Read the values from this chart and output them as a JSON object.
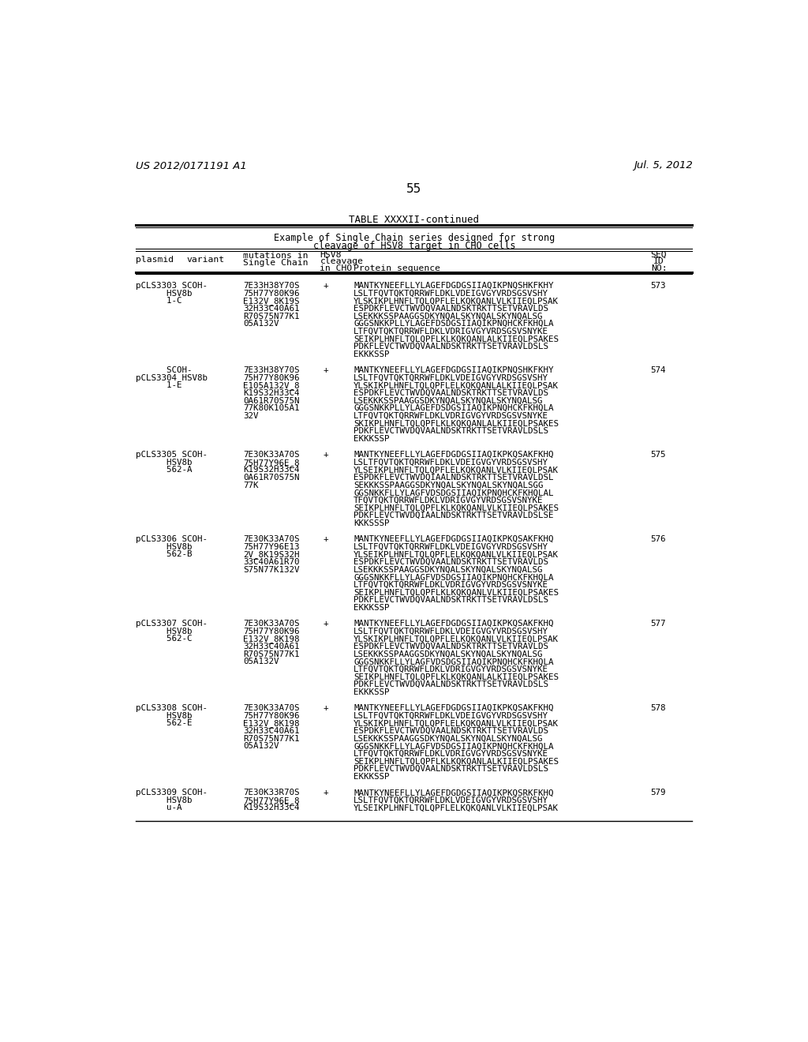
{
  "bg_color": "#ffffff",
  "header_left": "US 2012/0171191 A1",
  "header_right": "Jul. 5, 2012",
  "page_number": "55",
  "table_title": "TABLE XXXXII-continued",
  "table_subtitle1": "Example of Single Chain series designed for strong",
  "table_subtitle2": "cleavage of HSV8 target in CHO cells",
  "entries": [
    {
      "plasmid_line1": "pCLS3303 SCOH-",
      "plasmid_line2": "      HSV8b",
      "plasmid_line3": "      1-C",
      "mutations": [
        "7E33H38Y70S",
        "75H77Y80K96",
        "E132V_8K19S",
        "32H33C40A61",
        "R70S75N77K1",
        "05A132V"
      ],
      "cleavage": "+",
      "seq_id": "573",
      "protein": [
        "MANTKYNEEFLLYLAGEFDGDGSIIAQIKPNQSHKFKHY",
        "LSLTFQVTQKTQRRWFLDKLVDEIGVGYVRDSGSVSHY",
        "YLSKIKPLHNFLTQLQPFLELKQKQANLVLKIIEQLPSAK",
        "ESPDKFLEVCTWVDQVAALNDSKTRKTTSETVRAVLDS",
        "LSEKKKSSPAAGGSDKYNQALSKYNQALSKYNQALSG",
        "GGGSNKKPLLYLAGEFDSDGSIIAQIKPNQHCKFKHQLA",
        "LTFQVTQKTQRRWFLDKLVDRIGVGYVRDSGSVSNYKE",
        "SEIKPLHNFLTQLQPFLKLKQKQANLALKIIEQLPSAKES",
        "PDKFLEVCTWVDQVAALNDSKTRKTTSETVRAVLDSLS",
        "EKKKSSP"
      ]
    },
    {
      "plasmid_line1": "      SCOH-",
      "plasmid_line2": "pCLS3304 HSV8b",
      "plasmid_line3": "      1-E",
      "mutations": [
        "7E33H38Y70S",
        "75H77Y80K96",
        "E105A132V_8",
        "K19S32H33C4",
        "0A61R70S75N",
        "77K80K105A1",
        "32V"
      ],
      "cleavage": "+",
      "seq_id": "574",
      "protein": [
        "MANTKYNEEFLLYLAGEFDGDGSIIAQIKPNQSHKFKHY",
        "LSLTFQVTQKTQRRWFLDKLVDEIGVGYVRDSGSVSHY",
        "YLSKIKPLHNFLTQLQPFLELKQKQANLALKIIEQLPSAK",
        "ESPDKFLEVCTWVDQVAALNDSKTRKTTSETVRAVLDS",
        "LSEKKKSSPAAGGSDKYNQALSKYNQALSKYNQALSG",
        "GGGSNKKPLLYLAGEFDSDGSIIAQIKPNQHCKFKHQLA",
        "LTFQVTQKTQRRWFLDKLVDRIGVGYVRDSGSVSNYKE",
        "SKIKPLHNFLTQLQPFLKLKQKQANLALKIIEQLPSAKES",
        "PDKFLEVCTWVDQVAALNDSKTRKTTSETVRAVLDSLS",
        "EKKKSSP"
      ]
    },
    {
      "plasmid_line1": "pCLS3305 SCOH-",
      "plasmid_line2": "      HSV8b",
      "plasmid_line3": "      562-A",
      "mutations": [
        "7E30K33A70S",
        "75H77Y96E_8",
        "K19S32H33C4",
        "0A61R70S75N",
        "77K"
      ],
      "cleavage": "+",
      "seq_id": "575",
      "protein": [
        "MANTKYNEEFLLYLAGEFDGDGSIIAQIKPKQSAKFKHQ",
        "LSLTFQVTQKTQRRWFLDKLVDEIGVGYVRDSGSVSHY",
        "YLSEIKPLHNFLTQLQPFLELKQKQANLVLKIIEQLPSAK",
        "ESPDKFLEVCTWVDQIAALNDSKTRKTTSETVRAVLDSL",
        "SEKKKSSPAAGGSDKYNQALSKYNQALSKYNQALSGG",
        "GGSNKKFLLYLAGFVDSDGSIIAQIKPNQHCKFKHQLAL",
        "TFQVTQKTQRRWFLDKLVDRIGVGYVRDSGSVSNYKE",
        "SEIKPLHNFLTQLQPFLKLKQKQANLVLKIIEQLPSAKES",
        "PDKFLEVCTWVDQIAALNDSKTRKTTSETVRAVLDSLSE",
        "KKKSSSP"
      ]
    },
    {
      "plasmid_line1": "pCLS3306 SCOH-",
      "plasmid_line2": "      HSV8b",
      "plasmid_line3": "      562-B",
      "mutations": [
        "7E30K33A70S",
        "75H77Y96E13",
        "2V_8K19S32H",
        "33C40A61R70",
        "S75N77K132V"
      ],
      "cleavage": "+",
      "seq_id": "576",
      "protein": [
        "MANTKYNEEFLLYLAGEFDGDGSIIAQIKPKQSAKFKHQ",
        "LSLTFQVTQKTQRRWFLDKLVDEIGVGYVRDSGSVSHY",
        "YLSEIKPLHNFLTQLQPFLELKQKQANLVLKIIEQLPSAK",
        "ESPDKFLEVCTWVDQVAALNDSKTRKTTSETVRAVLDS",
        "LSEKKKSSPAAGGSDKYNQALSKYNQALSKYNQALSG",
        "GGGSNKKFLLYLAGFVDSDGSIIAQIKPNQHCKFKHQLA",
        "LTFQVTQKTQRRWFLDKLVDRIGVGYVRDSGSVSNYKE",
        "SEIKPLHNFLTQLQPFLKLKQKQANLVLKIIEQLPSAKES",
        "PDKFLEVCTWVDQVAALNDSKTRKTTSETVRAVLDSLS",
        "EKKKSSP"
      ]
    },
    {
      "plasmid_line1": "pCLS3307 SCOH-",
      "plasmid_line2": "      HSV8b",
      "plasmid_line3": "      562-C",
      "mutations": [
        "7E30K33A70S",
        "75H77Y80K96",
        "E132V_8K198",
        "32H33C40A61",
        "R70S75N77K1",
        "05A132V"
      ],
      "cleavage": "+",
      "seq_id": "577",
      "protein": [
        "MANTKYNEEFLLYLAGEFDGDGSIIAQIKPKQSAKFKHQ",
        "LSLTFQVTQKTQRRWFLDKLVDEIGVGYVRDSGSVSHY",
        "YLSKIKPLHNFLTQLQPFLELKQKQANLVLKIIEQLPSAK",
        "ESPDKFLEVCTWVDQVAALNDSKTRKTTSETVRAVLDS",
        "LSEKKKSSPAAGGSDKYNQALSKYNQALSKYNQALSG",
        "GGGSNKKFLLYLAGFVDSDGSIIAQIKPNQHCKFKHQLA",
        "LTFQVTQKTQRRWFLDKLVDRIGVGYVRDSGSVSNYKE",
        "SEIKPLHNFLTQLQPFLKLKQKQANLALKIIEQLPSAKES",
        "PDKFLEVCTWVDQVAALNDSKTRKTTSETVRAVLDSLS",
        "EKKKSSP"
      ]
    },
    {
      "plasmid_line1": "pCLS3308 SCOH-",
      "plasmid_line2": "      HSV8b",
      "plasmid_line3": "      562-E",
      "mutations": [
        "7E30K33A70S",
        "75H77Y80K96",
        "E132V_8K198",
        "32H33C40A61",
        "R70S75N77K1",
        "05A132V"
      ],
      "cleavage": "+",
      "seq_id": "578",
      "protein": [
        "MANTKYNEEFLLYLAGEFDGDGSIIAQIKPKQSAKFKHQ",
        "LSLTFQVTQKTQRRWFLDKLVDEIGVGYVRDSGSVSHY",
        "YLSKIKPLHNFLTQLQPFLELKQKQANLVLKIIEQLPSAK",
        "ESPDKFLEVCTWVDQVAALNDSKTRKTTSETVRAVLDS",
        "LSEKKKSSPAAGGSDKYNQALSKYNQALSKYNQALSG",
        "GGGSNKKFLLYLAGFVDSDGSIIAQIKPNQHCKFKHQLA",
        "LTFQVTQKTQRRWFLDKLVDRIGVGYVRDSGSVSNYKE",
        "SEIKPLHNFLTQLQPFLKLKQKQANLALKIIEQLPSAKES",
        "PDKFLEVCTWVDQVAALNDSKTRKTTSETVRAVLDSLS",
        "EKKKSSP"
      ]
    },
    {
      "plasmid_line1": "pCLS3309 SCOH-",
      "plasmid_line2": "      HSV8b",
      "plasmid_line3": "      u-A",
      "mutations": [
        "7E30K33R70S",
        "75H77Y96E_8",
        "K19S32H33C4"
      ],
      "cleavage": "+",
      "seq_id": "579",
      "protein": [
        "MANTKYNEEFLLYLAGEFDGDGSIIAQIKPKQSRKFKHQ",
        "LSLTFQVTQKTQRRWFLDKLVDEIGVGYVRDSGSVSHY",
        "YLSEIKPLHNFLTQLQPFLELKQKQANLVLKIIEQLPSAK"
      ]
    }
  ]
}
